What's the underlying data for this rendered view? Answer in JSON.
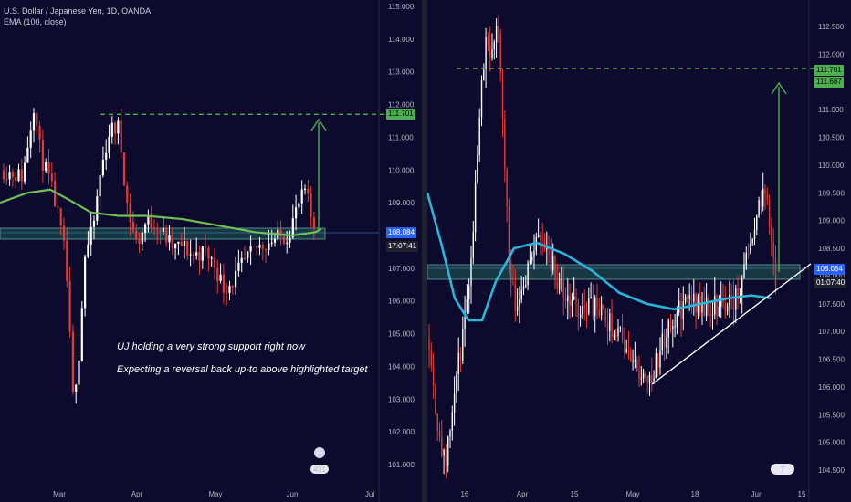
{
  "left": {
    "title": "U.S. Dollar / Japanese Yen, 1D, OANDA",
    "indicator": "EMA (100, close)",
    "note_line1": "UJ holding a very strong support right now",
    "note_line2": "Expecting a reversal back up-to above highlighted target",
    "price_ticks": [
      "115.000",
      "114.000",
      "113.000",
      "112.000",
      "111.000",
      "110.000",
      "109.000",
      "108.000",
      "107.000",
      "106.000",
      "105.000",
      "104.000",
      "103.000",
      "102.000",
      "101.000"
    ],
    "time_ticks": [
      "Mar",
      "Apr",
      "May",
      "Jun",
      "Jul"
    ],
    "target_price": "111.701",
    "current_price": "108.084",
    "countdown": "17:07:41",
    "badge_count": "431"
  },
  "right": {
    "price_ticks": [
      "112.500",
      "112.000",
      "111.500",
      "111.000",
      "110.500",
      "110.000",
      "109.500",
      "109.000",
      "108.500",
      "108.000",
      "107.500",
      "107.000",
      "106.500",
      "106.000",
      "105.500",
      "105.000",
      "104.500"
    ],
    "time_ticks": [
      "16",
      "Apr",
      "15",
      "May",
      "18",
      "Jun",
      "15"
    ],
    "target_price": "111.701",
    "target_price_2": "111.687",
    "current_price": "108.084",
    "countdown": "01:07:40",
    "badge_count": "7"
  },
  "colors": {
    "background": "#0c0b2e",
    "bull": "#ffffff",
    "bear": "#e53935",
    "ema_left": "#6fbf55",
    "ema_right": "#29b6d8",
    "target": "#4caf50",
    "support_zone": "#2e8b6a",
    "price_tag": "#2962ff"
  }
}
